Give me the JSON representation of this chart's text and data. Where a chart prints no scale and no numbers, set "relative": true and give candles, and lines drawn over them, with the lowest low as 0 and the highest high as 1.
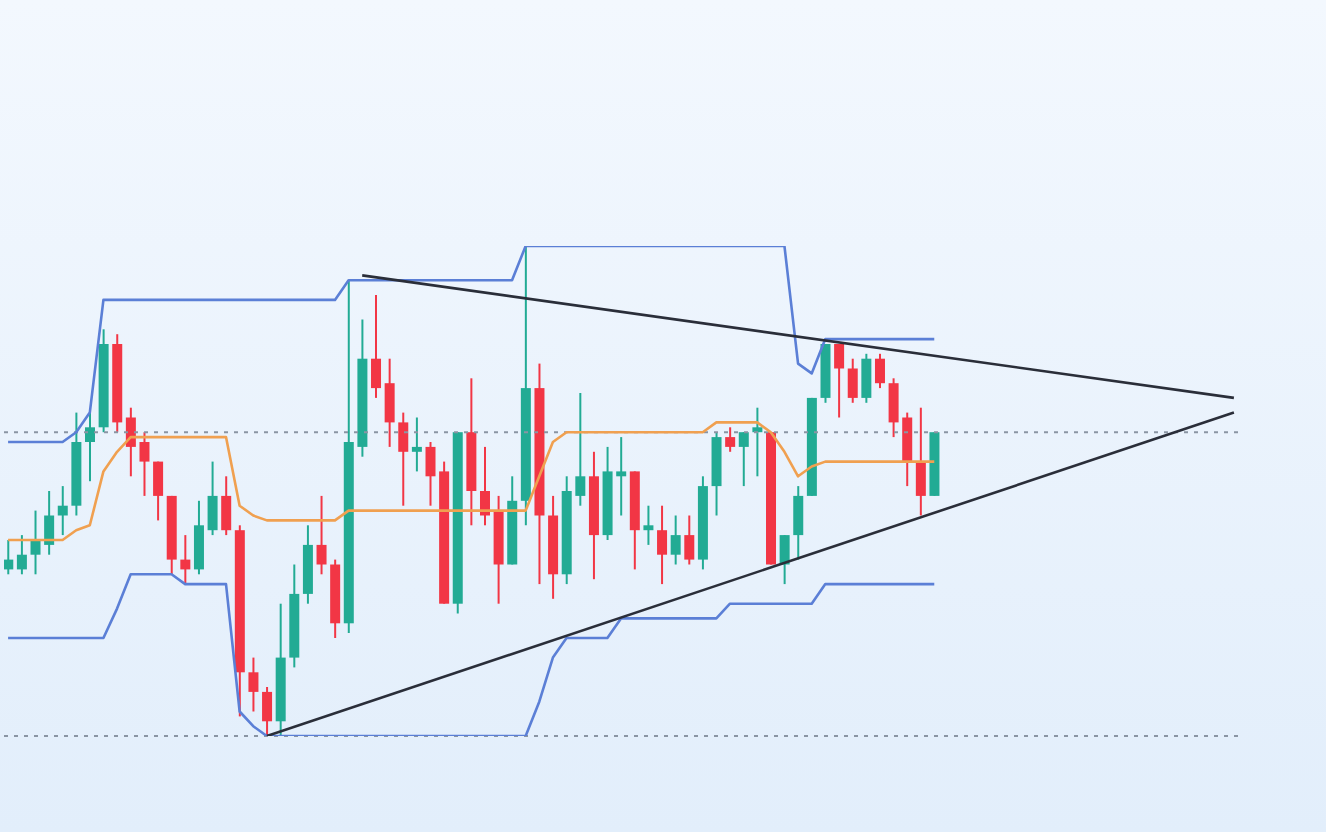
{
  "chart_data": {
    "type": "candlestick",
    "relative": true,
    "categories": [
      null,
      null,
      null,
      null,
      null,
      null,
      null,
      null,
      null,
      null,
      null,
      null,
      null,
      null,
      null,
      null,
      null,
      null,
      null,
      null,
      null,
      null,
      null,
      null,
      null,
      null,
      null,
      null,
      null,
      null,
      null,
      null,
      null,
      null,
      null,
      null,
      null,
      null,
      null,
      null,
      null,
      null,
      null,
      null,
      null,
      null,
      null,
      null,
      null,
      null,
      null,
      null,
      null,
      null,
      null,
      null,
      null,
      null,
      null,
      null,
      null,
      null,
      null,
      null,
      null,
      null,
      null,
      null,
      null,
      null,
      null,
      null,
      null,
      null,
      null,
      null,
      null,
      null,
      null,
      null,
      null,
      null,
      null,
      null,
      null,
      null,
      null,
      null,
      null,
      null,
      null
    ],
    "ohlc": [
      [
        0.34,
        0.4,
        0.33,
        0.36
      ],
      [
        0.34,
        0.41,
        0.33,
        0.37
      ],
      [
        0.37,
        0.46,
        0.33,
        0.4
      ],
      [
        0.39,
        0.5,
        0.37,
        0.45
      ],
      [
        0.45,
        0.51,
        0.41,
        0.47
      ],
      [
        0.47,
        0.66,
        0.45,
        0.6
      ],
      [
        0.6,
        0.66,
        0.52,
        0.63
      ],
      [
        0.63,
        0.83,
        0.62,
        0.8
      ],
      [
        0.8,
        0.82,
        0.62,
        0.64
      ],
      [
        0.65,
        0.67,
        0.53,
        0.59
      ],
      [
        0.6,
        0.62,
        0.49,
        0.56
      ],
      [
        0.56,
        0.56,
        0.44,
        0.49
      ],
      [
        0.49,
        0.49,
        0.33,
        0.36
      ],
      [
        0.36,
        0.41,
        0.31,
        0.34
      ],
      [
        0.34,
        0.48,
        0.33,
        0.43
      ],
      [
        0.42,
        0.56,
        0.41,
        0.49
      ],
      [
        0.49,
        0.53,
        0.41,
        0.42
      ],
      [
        0.42,
        0.43,
        0.04,
        0.13
      ],
      [
        0.13,
        0.16,
        0.05,
        0.09
      ],
      [
        0.09,
        0.1,
        0,
        0.03
      ],
      [
        0.03,
        0.27,
        0,
        0.16
      ],
      [
        0.16,
        0.35,
        0.14,
        0.29
      ],
      [
        0.29,
        0.43,
        0.27,
        0.39
      ],
      [
        0.39,
        0.49,
        0.33,
        0.35
      ],
      [
        0.35,
        0.36,
        0.2,
        0.23
      ],
      [
        0.23,
        0.93,
        0.21,
        0.6
      ],
      [
        0.59,
        0.85,
        0.57,
        0.77
      ],
      [
        0.77,
        0.9,
        0.69,
        0.71
      ],
      [
        0.72,
        0.77,
        0.59,
        0.64
      ],
      [
        0.64,
        0.66,
        0.47,
        0.58
      ],
      [
        0.58,
        0.65,
        0.54,
        0.59
      ],
      [
        0.59,
        0.6,
        0.47,
        0.53
      ],
      [
        0.54,
        0.56,
        0.27,
        0.27
      ],
      [
        0.27,
        0.62,
        0.25,
        0.62
      ],
      [
        0.62,
        0.73,
        0.43,
        0.5
      ],
      [
        0.5,
        0.59,
        0.43,
        0.45
      ],
      [
        0.46,
        0.49,
        0.27,
        0.35
      ],
      [
        0.35,
        0.53,
        0.35,
        0.48
      ],
      [
        0.48,
        1.0,
        0.43,
        0.71
      ],
      [
        0.71,
        0.76,
        0.31,
        0.45
      ],
      [
        0.45,
        0.49,
        0.28,
        0.33
      ],
      [
        0.33,
        0.53,
        0.31,
        0.5
      ],
      [
        0.49,
        0.7,
        0.47,
        0.53
      ],
      [
        0.53,
        0.58,
        0.32,
        0.41
      ],
      [
        0.41,
        0.59,
        0.4,
        0.54
      ],
      [
        0.53,
        0.61,
        0.45,
        0.54
      ],
      [
        0.54,
        0.54,
        0.34,
        0.42
      ],
      [
        0.42,
        0.47,
        0.39,
        0.43
      ],
      [
        0.42,
        0.47,
        0.31,
        0.37
      ],
      [
        0.37,
        0.45,
        0.35,
        0.41
      ],
      [
        0.41,
        0.45,
        0.35,
        0.36
      ],
      [
        0.36,
        0.53,
        0.34,
        0.51
      ],
      [
        0.51,
        0.62,
        0.45,
        0.61
      ],
      [
        0.61,
        0.63,
        0.58,
        0.59
      ],
      [
        0.59,
        0.62,
        0.51,
        0.62
      ],
      [
        0.62,
        0.67,
        0.53,
        0.63
      ],
      [
        0.62,
        0.62,
        0.35,
        0.35
      ],
      [
        0.35,
        0.41,
        0.31,
        0.41
      ],
      [
        0.41,
        0.51,
        0.36,
        0.49
      ],
      [
        0.49,
        0.69,
        0.49,
        0.69
      ],
      [
        0.69,
        0.8,
        0.68,
        0.8
      ],
      [
        0.8,
        0.8,
        0.65,
        0.75
      ],
      [
        0.75,
        0.77,
        0.68,
        0.69
      ],
      [
        0.69,
        0.78,
        0.68,
        0.77
      ],
      [
        0.77,
        0.78,
        0.71,
        0.72
      ],
      [
        0.72,
        0.73,
        0.61,
        0.64
      ],
      [
        0.65,
        0.66,
        0.51,
        0.56
      ],
      [
        0.56,
        0.67,
        0.45,
        0.49
      ],
      [
        0.49,
        0.62,
        0.49,
        0.62
      ],
      null,
      null,
      null,
      null,
      null,
      null,
      null,
      null,
      null,
      null,
      null,
      null,
      null,
      null,
      null,
      null,
      null,
      null,
      null,
      null,
      null,
      null
    ],
    "colors": [
      "#22ab94",
      "#22ab94",
      "#22ab94",
      "#22ab94",
      "#22ab94",
      "#22ab94",
      "#22ab94",
      "#22ab94",
      "#f23645",
      "#f23645",
      "#f23645",
      "#f23645",
      "#f23645",
      "#f23645",
      "#22ab94",
      "#22ab94",
      "#f23645",
      "#f23645",
      "#f23645",
      "#f23645",
      "#22ab94",
      "#22ab94",
      "#22ab94",
      "#f23645",
      "#f23645",
      "#22ab94",
      "#22ab94",
      "#f23645",
      "#f23645",
      "#f23645",
      "#22ab94",
      "#f23645",
      "#f23645",
      "#22ab94",
      "#f23645",
      "#f23645",
      "#f23645",
      "#22ab94",
      "#22ab94",
      "#f23645",
      "#f23645",
      "#22ab94",
      "#22ab94",
      "#f23645",
      "#22ab94",
      "#22ab94",
      "#f23645",
      "#22ab94",
      "#f23645",
      "#22ab94",
      "#f23645",
      "#22ab94",
      "#22ab94",
      "#f23645",
      "#22ab94",
      "#22ab94",
      "#f23645",
      "#22ab94",
      "#22ab94",
      "#22ab94",
      "#22ab94",
      "#f23645",
      "#f23645",
      "#22ab94",
      "#f23645",
      "#f23645",
      "#f23645",
      "#f23645",
      "#22ab94",
      null,
      null,
      null,
      null,
      null,
      null,
      null,
      null,
      null,
      null,
      null,
      null,
      null,
      null,
      null,
      null,
      null,
      null,
      null,
      null,
      null,
      null
    ],
    "series": [
      {
        "type": "line",
        "color": "#5b7fd6",
        "values": [
          0.6,
          0.6,
          0.6,
          0.6,
          0.6,
          0.62,
          0.66,
          0.89,
          0.89,
          0.89,
          0.89,
          0.89,
          0.89,
          0.89,
          0.89,
          0.89,
          0.89,
          0.89,
          0.89,
          0.89,
          0.89,
          0.89,
          0.89,
          0.89,
          0.89,
          0.93,
          0.93,
          0.93,
          0.93,
          0.93,
          0.93,
          0.93,
          0.93,
          0.93,
          0.93,
          0.93,
          0.93,
          0.93,
          1.0,
          1.0,
          1.0,
          1.0,
          1.0,
          1.0,
          1.0,
          1.0,
          1.0,
          1.0,
          1.0,
          1.0,
          1.0,
          1.0,
          1.0,
          1.0,
          1.0,
          1.0,
          1.0,
          1.0,
          0.76,
          0.74,
          0.81,
          0.81,
          0.81,
          0.81,
          0.81,
          0.81,
          0.81,
          0.81,
          0.81,
          null,
          null,
          null,
          null,
          null,
          null,
          null,
          null,
          null,
          null,
          null,
          null,
          null,
          null,
          null,
          null,
          null,
          null,
          null,
          null,
          null,
          null
        ]
      },
      {
        "type": "line",
        "color": "#5b7fd6",
        "values": [
          0.2,
          0.2,
          0.2,
          0.2,
          0.2,
          0.2,
          0.2,
          0.2,
          0.26,
          0.33,
          0.33,
          0.33,
          0.33,
          0.31,
          0.31,
          0.31,
          0.31,
          0.05,
          0.02,
          0,
          0,
          0,
          0,
          0,
          0,
          0,
          0,
          0,
          0,
          0,
          0,
          0,
          0,
          0,
          0,
          0,
          0,
          0,
          0,
          0.07,
          0.16,
          0.2,
          0.2,
          0.2,
          0.2,
          0.24,
          0.24,
          0.24,
          0.24,
          0.24,
          0.24,
          0.24,
          0.24,
          0.27,
          0.27,
          0.27,
          0.27,
          0.27,
          0.27,
          0.27,
          0.31,
          0.31,
          0.31,
          0.31,
          0.31,
          0.31,
          0.31,
          0.31,
          0.31,
          null,
          null,
          null,
          null,
          null,
          null,
          null,
          null,
          null,
          null,
          null,
          null,
          null,
          null,
          null,
          null,
          null,
          null,
          null,
          null,
          null,
          null
        ]
      },
      {
        "type": "line",
        "color": "#f0a050",
        "values": [
          0.4,
          0.4,
          0.4,
          0.4,
          0.4,
          0.42,
          0.43,
          0.54,
          0.58,
          0.61,
          0.61,
          0.61,
          0.61,
          0.61,
          0.61,
          0.61,
          0.61,
          0.47,
          0.45,
          0.44,
          0.44,
          0.44,
          0.44,
          0.44,
          0.44,
          0.46,
          0.46,
          0.46,
          0.46,
          0.46,
          0.46,
          0.46,
          0.46,
          0.46,
          0.46,
          0.46,
          0.46,
          0.46,
          0.46,
          0.53,
          0.6,
          0.62,
          0.62,
          0.62,
          0.62,
          0.62,
          0.62,
          0.62,
          0.62,
          0.62,
          0.62,
          0.62,
          0.64,
          0.64,
          0.64,
          0.64,
          0.62,
          0.58,
          0.53,
          0.55,
          0.56,
          0.56,
          0.56,
          0.56,
          0.56,
          0.56,
          0.56,
          0.56,
          0.56,
          null,
          null,
          null,
          null,
          null,
          null,
          null,
          null,
          null,
          null,
          null,
          null,
          null,
          null,
          null,
          null,
          null,
          null,
          null,
          null,
          null,
          null
        ]
      },
      {
        "type": "line",
        "color": "#2a2e39",
        "values": [
          null,
          null,
          null,
          null,
          null,
          null,
          null,
          null,
          null,
          null,
          null,
          null,
          null,
          null,
          null,
          null,
          null,
          null,
          null,
          null,
          null,
          null,
          null,
          null,
          null,
          null,
          0.94,
          null,
          null,
          null,
          null,
          null,
          null,
          null,
          null,
          null,
          null,
          null,
          null,
          null,
          null,
          null,
          null,
          null,
          null,
          null,
          null,
          null,
          null,
          null,
          null,
          null,
          null,
          null,
          null,
          null,
          null,
          null,
          null,
          null,
          null,
          null,
          null,
          null,
          null,
          null,
          null,
          null,
          null,
          null,
          null,
          null,
          null,
          null,
          null,
          null,
          null,
          null,
          null,
          null,
          null,
          null,
          null,
          null,
          null,
          null,
          null,
          null,
          null,
          null,
          0.69
        ]
      },
      {
        "type": "line",
        "color": "#2a2e39",
        "values": [
          null,
          null,
          null,
          null,
          null,
          null,
          null,
          null,
          null,
          null,
          null,
          null,
          null,
          null,
          null,
          null,
          null,
          null,
          null,
          0,
          null,
          null,
          null,
          null,
          null,
          null,
          null,
          null,
          null,
          null,
          null,
          null,
          null,
          null,
          null,
          null,
          null,
          null,
          null,
          null,
          null,
          null,
          null,
          null,
          null,
          null,
          null,
          null,
          null,
          null,
          null,
          null,
          null,
          null,
          null,
          null,
          null,
          null,
          null,
          null,
          null,
          null,
          null,
          null,
          null,
          null,
          null,
          null,
          null,
          null,
          null,
          null,
          null,
          null,
          null,
          null,
          null,
          null,
          null,
          null,
          null,
          null,
          null,
          null,
          null,
          null,
          null,
          null,
          null,
          null,
          0.66
        ]
      }
    ],
    "ref_lines": [
      {
        "axis": "y",
        "value": 0.62,
        "color": "#8a95a3",
        "line_style": "dotted"
      },
      {
        "axis": "y",
        "value": 0,
        "color": "#8a95a3",
        "line_style": "dotted"
      }
    ]
  }
}
